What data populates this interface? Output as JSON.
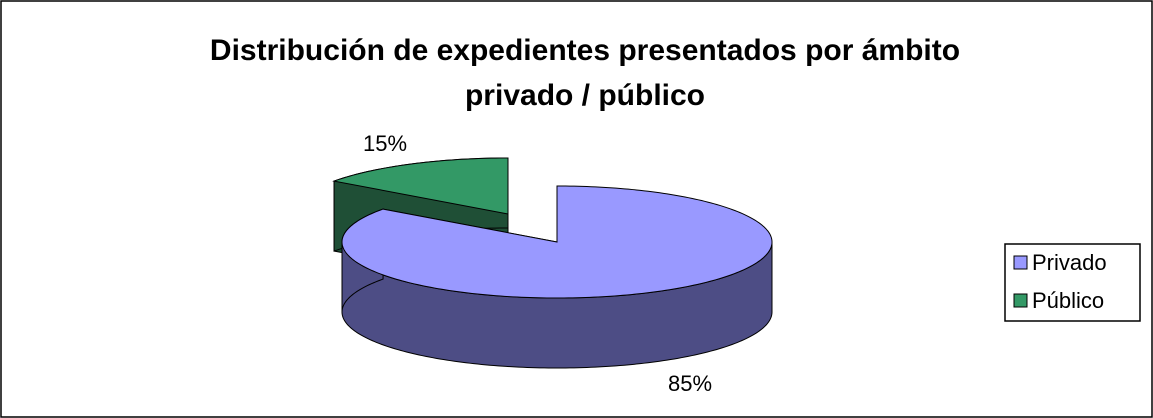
{
  "chart_data": {
    "type": "pie",
    "title": [
      "Distribución de expedientes presentados por ámbito",
      "privado / público"
    ],
    "categories": [
      "Privado",
      "Público"
    ],
    "values": [
      85,
      15
    ],
    "value_labels": [
      "85%",
      "15%"
    ],
    "colors": [
      "#9999ff",
      "#339966"
    ],
    "side_colors": [
      "#4d4d85",
      "#1f4f36"
    ],
    "legend": "right"
  }
}
